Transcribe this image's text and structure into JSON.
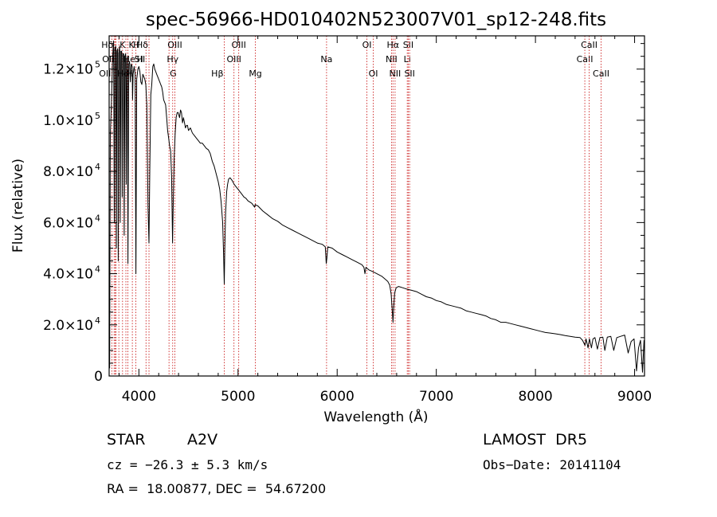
{
  "chart_data": {
    "type": "line",
    "title": "spec-56966-HD010402N523007V01_sp12-248.fits",
    "xlabel": "Wavelength (Å)",
    "ylabel": "Flux (relative)",
    "xlim": [
      3700,
      9100
    ],
    "ylim": [
      0,
      133000
    ],
    "x_ticks": [
      {
        "value": 4000,
        "label": "4000"
      },
      {
        "value": 5000,
        "label": "5000"
      },
      {
        "value": 6000,
        "label": "6000"
      },
      {
        "value": 7000,
        "label": "7000"
      },
      {
        "value": 8000,
        "label": "8000"
      },
      {
        "value": 9000,
        "label": "9000"
      }
    ],
    "y_ticks": [
      {
        "value": 0,
        "label": "0"
      },
      {
        "value": 20000,
        "label": "2.0×10",
        "exp": "4"
      },
      {
        "value": 40000,
        "label": "4.0×10",
        "exp": "4"
      },
      {
        "value": 60000,
        "label": "6.0×10",
        "exp": "4"
      },
      {
        "value": 80000,
        "label": "8.0×10",
        "exp": "4"
      },
      {
        "value": 100000,
        "label": "1.0×10",
        "exp": "5"
      },
      {
        "value": 120000,
        "label": "1.2×10",
        "exp": "5"
      }
    ],
    "grid": false,
    "series": [
      {
        "color": "#000000",
        "points": [
          [
            3705,
            3000
          ],
          [
            3712,
            95000
          ],
          [
            3722,
            105000
          ],
          [
            3735,
            125000
          ],
          [
            3745,
            131000
          ],
          [
            3752,
            60000
          ],
          [
            3758,
            128000
          ],
          [
            3766,
            129000
          ],
          [
            3772,
            50000
          ],
          [
            3778,
            127000
          ],
          [
            3786,
            128000
          ],
          [
            3792,
            45000
          ],
          [
            3798,
            126000
          ],
          [
            3806,
            129000
          ],
          [
            3812,
            60000
          ],
          [
            3818,
            127000
          ],
          [
            3826,
            127000
          ],
          [
            3832,
            70000
          ],
          [
            3838,
            126000
          ],
          [
            3846,
            126000
          ],
          [
            3852,
            55000
          ],
          [
            3858,
            125000
          ],
          [
            3866,
            126000
          ],
          [
            3872,
            75000
          ],
          [
            3878,
            124000
          ],
          [
            3884,
            125000
          ],
          [
            3890,
            44000
          ],
          [
            3898,
            122000
          ],
          [
            3906,
            123000
          ],
          [
            3914,
            115000
          ],
          [
            3922,
            122000
          ],
          [
            3932,
            121000
          ],
          [
            3936,
            108000
          ],
          [
            3942,
            118000
          ],
          [
            3952,
            121000
          ],
          [
            3962,
            118000
          ],
          [
            3970,
            40000
          ],
          [
            3978,
            116000
          ],
          [
            3990,
            120000
          ],
          [
            4000,
            121000
          ],
          [
            4010,
            119000
          ],
          [
            4020,
            115000
          ],
          [
            4030,
            114000
          ],
          [
            4040,
            118000
          ],
          [
            4050,
            117000
          ],
          [
            4060,
            116000
          ],
          [
            4070,
            114000
          ],
          [
            4080,
            106000
          ],
          [
            4092,
            66000
          ],
          [
            4102,
            52000
          ],
          [
            4110,
            80000
          ],
          [
            4120,
            110000
          ],
          [
            4130,
            114000
          ],
          [
            4140,
            121000
          ],
          [
            4150,
            122000
          ],
          [
            4160,
            120000
          ],
          [
            4170,
            119000
          ],
          [
            4180,
            118000
          ],
          [
            4190,
            117000
          ],
          [
            4200,
            116000
          ],
          [
            4210,
            115000
          ],
          [
            4220,
            114000
          ],
          [
            4230,
            113000
          ],
          [
            4240,
            111000
          ],
          [
            4250,
            108000
          ],
          [
            4260,
            107000
          ],
          [
            4270,
            106000
          ],
          [
            4280,
            101000
          ],
          [
            4290,
            96000
          ],
          [
            4300,
            93000
          ],
          [
            4310,
            90000
          ],
          [
            4320,
            88000
          ],
          [
            4330,
            78000
          ],
          [
            4340,
            52000
          ],
          [
            4348,
            70000
          ],
          [
            4356,
            85000
          ],
          [
            4366,
            95000
          ],
          [
            4376,
            101000
          ],
          [
            4386,
            103000
          ],
          [
            4396,
            103000
          ],
          [
            4410,
            101000
          ],
          [
            4420,
            104000
          ],
          [
            4430,
            103000
          ],
          [
            4440,
            99000
          ],
          [
            4450,
            101000
          ],
          [
            4460,
            99000
          ],
          [
            4470,
            97000
          ],
          [
            4480,
            98000
          ],
          [
            4490,
            98000
          ],
          [
            4500,
            96000
          ],
          [
            4520,
            97000
          ],
          [
            4540,
            95000
          ],
          [
            4560,
            94000
          ],
          [
            4580,
            93000
          ],
          [
            4600,
            92000
          ],
          [
            4620,
            91000
          ],
          [
            4640,
            91000
          ],
          [
            4660,
            90000
          ],
          [
            4680,
            89000
          ],
          [
            4700,
            88500
          ],
          [
            4720,
            87000
          ],
          [
            4740,
            84000
          ],
          [
            4760,
            82000
          ],
          [
            4780,
            79000
          ],
          [
            4800,
            76000
          ],
          [
            4815,
            73000
          ],
          [
            4830,
            68000
          ],
          [
            4845,
            60000
          ],
          [
            4855,
            47000
          ],
          [
            4861,
            36000
          ],
          [
            4867,
            50000
          ],
          [
            4875,
            64000
          ],
          [
            4885,
            72000
          ],
          [
            4895,
            75000
          ],
          [
            4905,
            77000
          ],
          [
            4920,
            77500
          ],
          [
            4940,
            76500
          ],
          [
            4960,
            75000
          ],
          [
            4980,
            74000
          ],
          [
            5000,
            73000
          ],
          [
            5020,
            72000
          ],
          [
            5040,
            71000
          ],
          [
            5060,
            70000
          ],
          [
            5080,
            69500
          ],
          [
            5100,
            68500
          ],
          [
            5140,
            67500
          ],
          [
            5167,
            66000
          ],
          [
            5172,
            67000
          ],
          [
            5200,
            66500
          ],
          [
            5250,
            64500
          ],
          [
            5300,
            63000
          ],
          [
            5350,
            61500
          ],
          [
            5400,
            60500
          ],
          [
            5450,
            59000
          ],
          [
            5500,
            58000
          ],
          [
            5550,
            57000
          ],
          [
            5600,
            56000
          ],
          [
            5650,
            55000
          ],
          [
            5700,
            54000
          ],
          [
            5750,
            53000
          ],
          [
            5800,
            52000
          ],
          [
            5850,
            51500
          ],
          [
            5880,
            50500
          ],
          [
            5890,
            44000
          ],
          [
            5896,
            46000
          ],
          [
            5905,
            50500
          ],
          [
            5950,
            50000
          ],
          [
            6000,
            48500
          ],
          [
            6050,
            47500
          ],
          [
            6100,
            46500
          ],
          [
            6150,
            45500
          ],
          [
            6200,
            44500
          ],
          [
            6250,
            43500
          ],
          [
            6270,
            42500
          ],
          [
            6280,
            40000
          ],
          [
            6290,
            42500
          ],
          [
            6320,
            41500
          ],
          [
            6350,
            41000
          ],
          [
            6400,
            40000
          ],
          [
            6450,
            39000
          ],
          [
            6480,
            38000
          ],
          [
            6510,
            37000
          ],
          [
            6530,
            35500
          ],
          [
            6545,
            32000
          ],
          [
            6555,
            26000
          ],
          [
            6563,
            21000
          ],
          [
            6570,
            27000
          ],
          [
            6580,
            32500
          ],
          [
            6595,
            34500
          ],
          [
            6620,
            35000
          ],
          [
            6660,
            34500
          ],
          [
            6700,
            34000
          ],
          [
            6750,
            33500
          ],
          [
            6800,
            33000
          ],
          [
            6850,
            32000
          ],
          [
            6900,
            31000
          ],
          [
            6950,
            30500
          ],
          [
            7000,
            29500
          ],
          [
            7050,
            29000
          ],
          [
            7100,
            28000
          ],
          [
            7150,
            27500
          ],
          [
            7200,
            27000
          ],
          [
            7250,
            26500
          ],
          [
            7300,
            25500
          ],
          [
            7350,
            25000
          ],
          [
            7400,
            24500
          ],
          [
            7450,
            24000
          ],
          [
            7500,
            23500
          ],
          [
            7550,
            22500
          ],
          [
            7600,
            22000
          ],
          [
            7650,
            21000
          ],
          [
            7700,
            21000
          ],
          [
            7750,
            20500
          ],
          [
            7800,
            20000
          ],
          [
            7850,
            19500
          ],
          [
            7900,
            19000
          ],
          [
            7950,
            18500
          ],
          [
            8000,
            18000
          ],
          [
            8050,
            17500
          ],
          [
            8100,
            17000
          ],
          [
            8150,
            16800
          ],
          [
            8200,
            16500
          ],
          [
            8250,
            16200
          ],
          [
            8300,
            15800
          ],
          [
            8350,
            15500
          ],
          [
            8400,
            15200
          ],
          [
            8450,
            15000
          ],
          [
            8475,
            14000
          ],
          [
            8500,
            12000
          ],
          [
            8510,
            14500
          ],
          [
            8530,
            11000
          ],
          [
            8545,
            14500
          ],
          [
            8565,
            11000
          ],
          [
            8580,
            14500
          ],
          [
            8600,
            15000
          ],
          [
            8625,
            10500
          ],
          [
            8650,
            15000
          ],
          [
            8680,
            15200
          ],
          [
            8700,
            10000
          ],
          [
            8725,
            15200
          ],
          [
            8760,
            15500
          ],
          [
            8790,
            10000
          ],
          [
            8820,
            15000
          ],
          [
            8860,
            15500
          ],
          [
            8900,
            16000
          ],
          [
            8935,
            9000
          ],
          [
            8965,
            13500
          ],
          [
            8995,
            14500
          ],
          [
            9020,
            2000
          ],
          [
            9040,
            11000
          ],
          [
            9060,
            14000
          ],
          [
            9080,
            1500
          ],
          [
            9095,
            14000
          ]
        ]
      }
    ],
    "line_markers": [
      {
        "x": 3727,
        "label": "OII",
        "row": 2,
        "anchor": "end"
      },
      {
        "x": 3750,
        "label": "Hδ",
        "row": 0,
        "anchor": "end"
      },
      {
        "x": 3760,
        "label": "OII",
        "row": 1,
        "anchor": "end"
      },
      {
        "x": 3770,
        "label": "He",
        "row": 2,
        "anchor": "start"
      },
      {
        "x": 3798,
        "label": "K",
        "row": 0,
        "anchor": "start"
      },
      {
        "x": 3835,
        "label": "He",
        "row": 1,
        "anchor": "start"
      },
      {
        "x": 3869,
        "label": "H",
        "row": 2,
        "anchor": "start"
      },
      {
        "x": 3889,
        "label": "K",
        "row": 0,
        "anchor": "start"
      },
      {
        "x": 3934,
        "label": "H",
        "row": 0,
        "anchor": "start"
      },
      {
        "x": 3969,
        "label": "H",
        "row": 1,
        "anchor": "start"
      },
      {
        "x": 4072,
        "label": "SII",
        "row": 1,
        "anchor": "end"
      },
      {
        "x": 4102,
        "label": "Hδ",
        "row": 0,
        "anchor": "end"
      },
      {
        "x": 4304,
        "label": "G",
        "row": 2,
        "anchor": "start"
      },
      {
        "x": 4341,
        "label": "Hγ",
        "row": 1,
        "anchor": "middle"
      },
      {
        "x": 4363,
        "label": "OIII",
        "row": 0,
        "anchor": "middle"
      },
      {
        "x": 4861,
        "label": "Hβ",
        "row": 2,
        "anchor": "end"
      },
      {
        "x": 4959,
        "label": "OIII",
        "row": 1,
        "anchor": "middle"
      },
      {
        "x": 5007,
        "label": "OIII",
        "row": 0,
        "anchor": "middle"
      },
      {
        "x": 5175,
        "label": "Mg",
        "row": 2,
        "anchor": "middle"
      },
      {
        "x": 5893,
        "label": "Na",
        "row": 1,
        "anchor": "middle"
      },
      {
        "x": 6300,
        "label": "OI",
        "row": 0,
        "anchor": "middle"
      },
      {
        "x": 6364,
        "label": "OI",
        "row": 2,
        "anchor": "middle"
      },
      {
        "x": 6548,
        "label": "NII",
        "row": 1,
        "anchor": "middle"
      },
      {
        "x": 6563,
        "label": "Hα",
        "row": 0,
        "anchor": "middle"
      },
      {
        "x": 6584,
        "label": "NII",
        "row": 2,
        "anchor": "middle"
      },
      {
        "x": 6707,
        "label": "Li",
        "row": 1,
        "anchor": "middle"
      },
      {
        "x": 6717,
        "label": "SII",
        "row": 0,
        "anchor": "middle"
      },
      {
        "x": 6731,
        "label": "SII",
        "row": 2,
        "anchor": "middle"
      },
      {
        "x": 8498,
        "label": "CaII",
        "row": 1,
        "anchor": "middle"
      },
      {
        "x": 8542,
        "label": "CaII",
        "row": 0,
        "anchor": "middle"
      },
      {
        "x": 8662,
        "label": "CaII",
        "row": 2,
        "anchor": "middle"
      }
    ],
    "marker_color": "#cc2222"
  },
  "footer": {
    "object_type": "STAR",
    "subclass": "A2V",
    "survey": "LAMOST  DR5",
    "cz": "cz = −26.3 ± 5.3 km/s",
    "obs_date": "Obs−Date: 20141104",
    "coords": "RA =  18.00877, DEC =  54.67200"
  }
}
